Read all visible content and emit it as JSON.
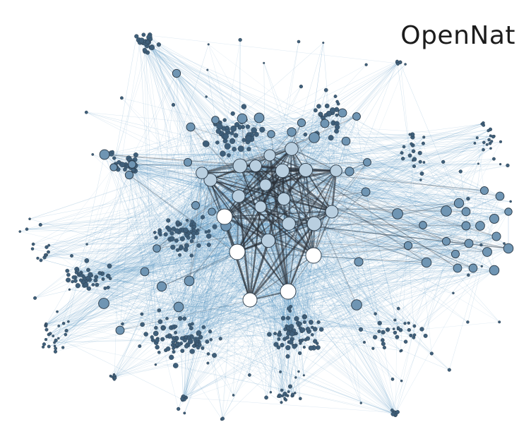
{
  "title": "OpenNat",
  "colors": {
    "background": "#ffffff",
    "edge": "#4d8fbf",
    "hub_edge": "#2a2f36",
    "node_small": "#3f5f7a",
    "node_mid": "#6f95b3",
    "node_light": "#b9cfe0",
    "node_hub": "#ffffff",
    "node_stroke": "#2b3a48",
    "title": "#1c1c1c"
  },
  "node_tiers": [
    "small",
    "mid",
    "light",
    "hub"
  ]
}
